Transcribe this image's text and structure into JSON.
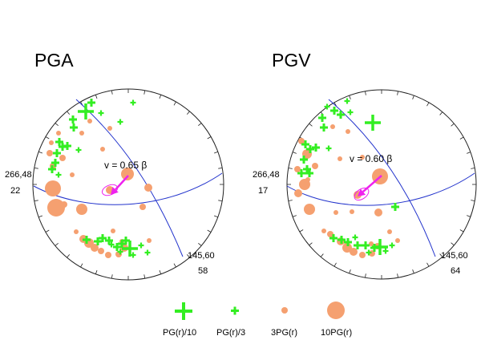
{
  "colors": {
    "green": "#33ee22",
    "orange": "#f5a070",
    "blue": "#2233cc",
    "magenta": "#ee22ee",
    "ring": "#222222"
  },
  "panels": [
    {
      "id": "pga",
      "title": "PGA",
      "left_label_1": "266,48",
      "left_label_2": "22",
      "right_label_1": "145,60",
      "right_label_2": "58",
      "velocity_label": "v = 0.65 β",
      "green_marks": [
        [
          107,
          139,
          "L"
        ],
        [
          114,
          128,
          "M"
        ],
        [
          126,
          141,
          "S"
        ],
        [
          91,
          149,
          "M"
        ],
        [
          92,
          159,
          "M"
        ],
        [
          150,
          152,
          "S"
        ],
        [
          166,
          128,
          "S"
        ],
        [
          74,
          177,
          "M"
        ],
        [
          78,
          183,
          "M"
        ],
        [
          71,
          191,
          "M"
        ],
        [
          65,
          211,
          "M"
        ],
        [
          69,
          203,
          "M"
        ],
        [
          84,
          182,
          "M"
        ],
        [
          73,
          218,
          "S"
        ],
        [
          98,
          187,
          "S"
        ],
        [
          108,
          299,
          "M"
        ],
        [
          122,
          301,
          "M"
        ],
        [
          128,
          297,
          "M"
        ],
        [
          136,
          300,
          "M"
        ],
        [
          146,
          308,
          "M"
        ],
        [
          152,
          304,
          "M"
        ],
        [
          157,
          300,
          "M"
        ],
        [
          162,
          310,
          "L"
        ],
        [
          150,
          314,
          "S"
        ],
        [
          139,
          305,
          "S"
        ],
        [
          176,
          306,
          "S"
        ],
        [
          184,
          315,
          "S"
        ],
        [
          166,
          318,
          "S"
        ]
      ],
      "orange_dots": [
        [
          66,
          235,
          10
        ],
        [
          70,
          259,
          11
        ],
        [
          102,
          261,
          7
        ],
        [
          159,
          217,
          8
        ],
        [
          137,
          237,
          5
        ],
        [
          185,
          234,
          5
        ],
        [
          178,
          258,
          4
        ],
        [
          64,
          178,
          3
        ],
        [
          62,
          191,
          4
        ],
        [
          66,
          207,
          4
        ],
        [
          73,
          166,
          3
        ],
        [
          78,
          197,
          4
        ],
        [
          90,
          218,
          3
        ],
        [
          80,
          255,
          4
        ],
        [
          104,
          298,
          5
        ],
        [
          111,
          303,
          6
        ],
        [
          118,
          309,
          5
        ],
        [
          126,
          313,
          4
        ],
        [
          135,
          318,
          4
        ],
        [
          148,
          317,
          4
        ],
        [
          155,
          309,
          5
        ],
        [
          112,
          151,
          3
        ],
        [
          137,
          160,
          3
        ],
        [
          128,
          186,
          3
        ],
        [
          102,
          166,
          3
        ],
        [
          152,
          301,
          3
        ],
        [
          186,
          300,
          3
        ],
        [
          141,
          288,
          3
        ],
        [
          95,
          289,
          3
        ]
      ],
      "arrow_tail": [
        160,
        219
      ],
      "arrow_head": [
        138,
        243
      ],
      "ellipse": {
        "center": [
          137,
          237
        ],
        "rotation": -22
      }
    },
    {
      "id": "pgv",
      "title": "PGV",
      "left_label_1": "266,48",
      "left_label_2": "17",
      "right_label_1": "145,60",
      "right_label_2": "64",
      "velocity_label": "v = 0.60 β",
      "green_marks": [
        [
          417,
          138,
          "M"
        ],
        [
          408,
          133,
          "S"
        ],
        [
          433,
          126,
          "S"
        ],
        [
          425,
          143,
          "M"
        ],
        [
          402,
          147,
          "M"
        ],
        [
          404,
          159,
          "M"
        ],
        [
          465,
          153,
          "L"
        ],
        [
          437,
          140,
          "S"
        ],
        [
          381,
          180,
          "M"
        ],
        [
          387,
          186,
          "M"
        ],
        [
          394,
          184,
          "M"
        ],
        [
          379,
          199,
          "M"
        ],
        [
          383,
          211,
          "M"
        ],
        [
          376,
          216,
          "M"
        ],
        [
          386,
          216,
          "M"
        ],
        [
          410,
          185,
          "S"
        ],
        [
          493,
          258,
          "M"
        ],
        [
          416,
          297,
          "M"
        ],
        [
          426,
          299,
          "M"
        ],
        [
          434,
          302,
          "M"
        ],
        [
          446,
          306,
          "M"
        ],
        [
          456,
          306,
          "M"
        ],
        [
          467,
          309,
          "M"
        ],
        [
          474,
          308,
          "L"
        ],
        [
          489,
          306,
          "S"
        ],
        [
          481,
          313,
          "S"
        ],
        [
          460,
          315,
          "S"
        ],
        [
          443,
          296,
          "S"
        ]
      ],
      "orange_dots": [
        [
          380,
          230,
          7
        ],
        [
          383,
          192,
          6
        ],
        [
          372,
          241,
          5
        ],
        [
          386,
          261,
          7
        ],
        [
          474,
          220,
          10
        ],
        [
          446,
          243,
          5
        ],
        [
          472,
          265,
          5
        ],
        [
          439,
          264,
          3
        ],
        [
          419,
          265,
          3
        ],
        [
          376,
          176,
          4
        ],
        [
          371,
          211,
          4
        ],
        [
          384,
          224,
          3
        ],
        [
          393,
          207,
          4
        ],
        [
          412,
          292,
          4
        ],
        [
          425,
          301,
          5
        ],
        [
          433,
          309,
          6
        ],
        [
          441,
          314,
          5
        ],
        [
          452,
          318,
          4
        ],
        [
          464,
          316,
          4
        ],
        [
          471,
          307,
          4
        ],
        [
          415,
          158,
          3
        ],
        [
          434,
          164,
          3
        ],
        [
          424,
          198,
          3
        ],
        [
          452,
          196,
          3
        ],
        [
          404,
          288,
          3
        ],
        [
          463,
          304,
          3
        ],
        [
          496,
          300,
          3
        ],
        [
          486,
          289,
          3
        ]
      ],
      "arrow_tail": [
        476,
        219
      ],
      "arrow_head": [
        446,
        245
      ],
      "ellipse": {
        "center": [
          451,
          242
        ],
        "rotation": -35
      }
    }
  ],
  "legend": {
    "items": [
      {
        "marker": "large-cross",
        "label": "PG(r)/10"
      },
      {
        "marker": "small-cross",
        "label": "PG(r)/3"
      },
      {
        "marker": "small-dot",
        "label": "3PG(r)"
      },
      {
        "marker": "large-dot",
        "label": "10PG(r)"
      }
    ]
  }
}
